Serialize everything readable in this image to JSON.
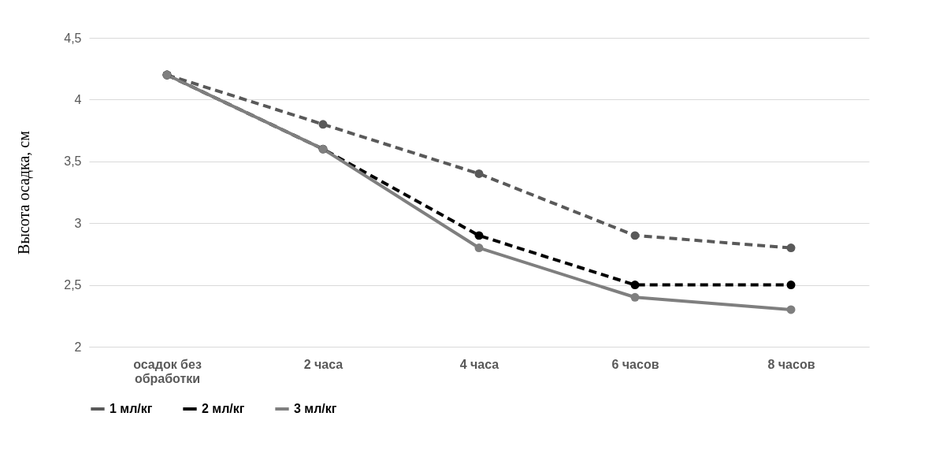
{
  "chart_data": {
    "type": "line",
    "ylabel": "Высота осадка, см",
    "categories": [
      "осадок без обработки",
      "2 часа",
      "4 часа",
      "6 часов",
      "8 часов"
    ],
    "series": [
      {
        "name": "1 мл/кг",
        "color": "#595959",
        "line_style": "dashed",
        "values": [
          4.2,
          3.8,
          3.4,
          2.9,
          2.8
        ]
      },
      {
        "name": "2 мл/кг",
        "color": "#000000",
        "line_style": "dashed",
        "values": [
          4.2,
          3.6,
          2.9,
          2.5,
          2.5
        ]
      },
      {
        "name": "3 мл/кг",
        "color": "#7f7f7f",
        "line_style": "solid",
        "values": [
          4.2,
          3.6,
          2.8,
          2.4,
          2.3
        ]
      }
    ],
    "ylim": [
      2,
      4.5
    ],
    "yticks": [
      2,
      {
        "value": 2.5,
        "label": "2,5"
      },
      3,
      {
        "value": 3.5,
        "label": "3,5"
      },
      4,
      {
        "value": 4.5,
        "label": "4,5"
      }
    ],
    "grid": "y",
    "legend": "bottom",
    "marker": "circle"
  }
}
